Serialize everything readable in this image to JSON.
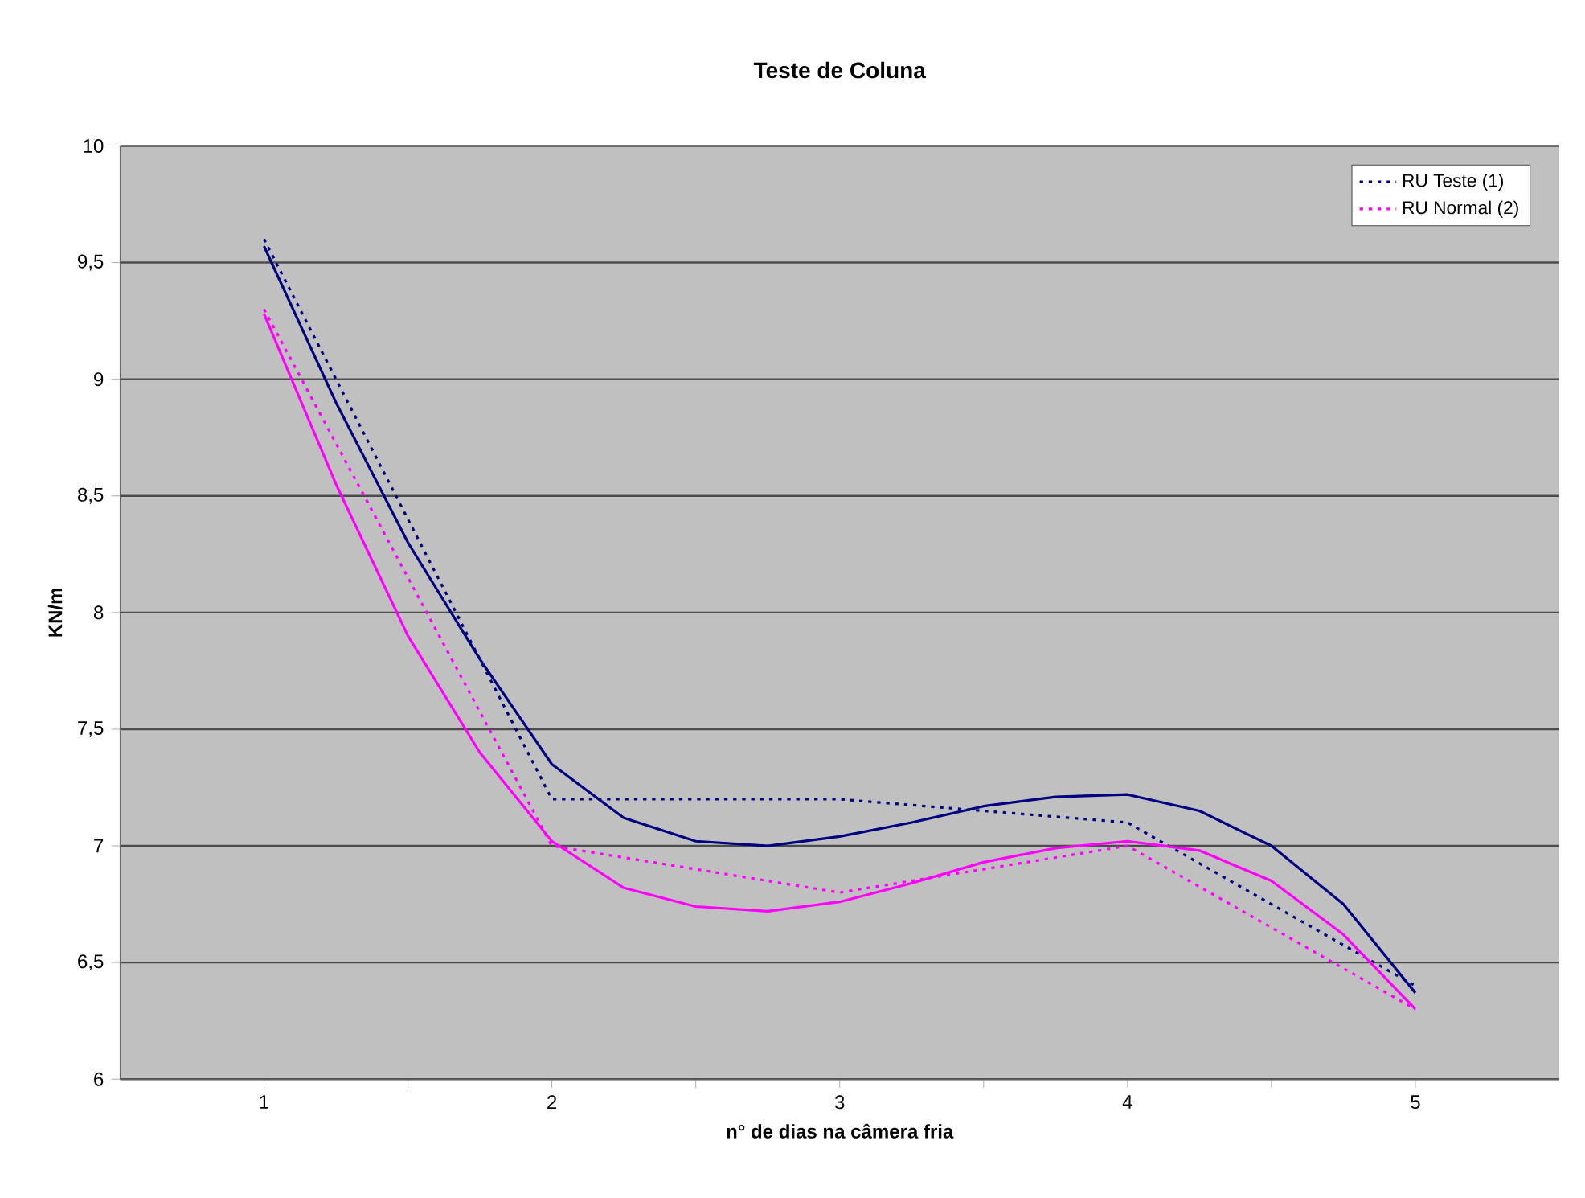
{
  "chart_data": {
    "type": "line",
    "title": "Teste de Coluna",
    "xlabel": "n° de dias na câmera fria",
    "ylabel": "KN/m",
    "xlim": [
      0.5,
      5.5
    ],
    "xticks": [
      {
        "value": 1,
        "label": "1"
      },
      {
        "value": 1.5,
        "label": null
      },
      {
        "value": 2,
        "label": "2"
      },
      {
        "value": 2.5,
        "label": null
      },
      {
        "value": 3,
        "label": "3"
      },
      {
        "value": 3.5,
        "label": null
      },
      {
        "value": 4,
        "label": "4"
      },
      {
        "value": 4.5,
        "label": null
      },
      {
        "value": 5,
        "label": "5"
      }
    ],
    "ylim": [
      6,
      10
    ],
    "yticks": [
      6,
      {
        "value": 6.5,
        "label": "6,5"
      },
      7,
      {
        "value": 7.5,
        "label": "7,5"
      },
      8,
      {
        "value": 8.5,
        "label": "8,5"
      },
      9,
      {
        "value": 9.5,
        "label": "9,5"
      },
      10
    ],
    "grid": "y",
    "legend": "top right",
    "marker": "none",
    "series": [
      {
        "name": "RU Teste (1)",
        "color": "#000080",
        "line_style": "dotted",
        "x": [
          1,
          2,
          3,
          4,
          5
        ],
        "values": [
          9.6,
          7.2,
          7.2,
          7.1,
          6.4
        ]
      },
      {
        "name": "RU Normal (2)",
        "color": "#ff00ff",
        "line_style": "dotted",
        "x": [
          1,
          2,
          3,
          4,
          5
        ],
        "values": [
          9.3,
          7.0,
          6.8,
          7.0,
          6.3
        ]
      },
      {
        "color": "#000080",
        "line_style": "solid",
        "x": [
          1,
          1.25,
          1.5,
          1.75,
          2,
          2.25,
          2.5,
          2.75,
          3,
          3.25,
          3.5,
          3.75,
          4,
          4.25,
          4.5,
          4.75,
          5
        ],
        "values": [
          9.57,
          8.9,
          8.3,
          7.8,
          7.35,
          7.12,
          7.02,
          7.0,
          7.04,
          7.1,
          7.17,
          7.21,
          7.22,
          7.15,
          7.0,
          6.75,
          6.37
        ]
      },
      {
        "color": "#ff00ff",
        "line_style": "solid",
        "x": [
          1,
          1.25,
          1.5,
          1.75,
          2,
          2.25,
          2.5,
          2.75,
          3,
          3.25,
          3.5,
          3.75,
          4,
          4.25,
          4.5,
          4.75,
          5
        ],
        "values": [
          9.28,
          8.55,
          7.9,
          7.4,
          7.02,
          6.82,
          6.74,
          6.72,
          6.76,
          6.84,
          6.93,
          6.99,
          7.02,
          6.98,
          6.85,
          6.62,
          6.3
        ]
      }
    ]
  }
}
